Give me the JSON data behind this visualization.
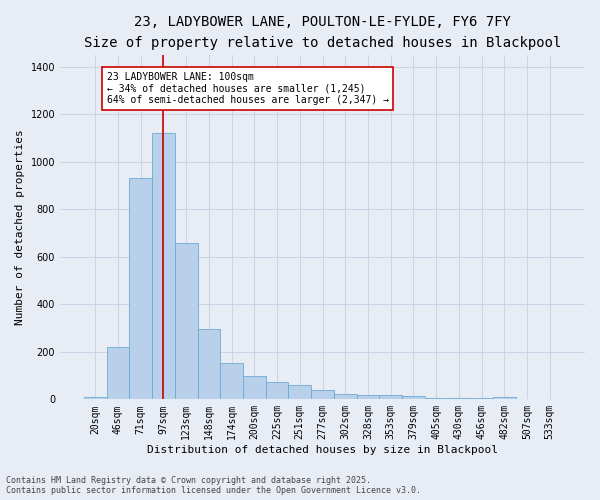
{
  "title_line1": "23, LADYBOWER LANE, POULTON-LE-FYLDE, FY6 7FY",
  "title_line2": "Size of property relative to detached houses in Blackpool",
  "xlabel": "Distribution of detached houses by size in Blackpool",
  "ylabel": "Number of detached properties",
  "categories": [
    "20sqm",
    "46sqm",
    "71sqm",
    "97sqm",
    "123sqm",
    "148sqm",
    "174sqm",
    "200sqm",
    "225sqm",
    "251sqm",
    "277sqm",
    "302sqm",
    "328sqm",
    "353sqm",
    "379sqm",
    "405sqm",
    "430sqm",
    "456sqm",
    "482sqm",
    "507sqm",
    "533sqm"
  ],
  "values": [
    8,
    220,
    930,
    1120,
    660,
    295,
    155,
    100,
    75,
    60,
    38,
    22,
    18,
    18,
    13,
    5,
    5,
    4,
    10,
    2,
    2
  ],
  "bar_color": "#b8d0ea",
  "bar_edge_color": "#6aaad4",
  "vline_x_index": 3.0,
  "vline_color": "#cc0000",
  "annotation_text": "23 LADYBOWER LANE: 100sqm\n← 34% of detached houses are smaller (1,245)\n64% of semi-detached houses are larger (2,347) →",
  "annotation_box_color": "#ffffff",
  "annotation_box_edge": "#cc0000",
  "ylim": [
    0,
    1450
  ],
  "yticks": [
    0,
    200,
    400,
    600,
    800,
    1000,
    1200,
    1400
  ],
  "grid_color": "#c8d4e8",
  "background_color": "#e8edf5",
  "footnote": "Contains HM Land Registry data © Crown copyright and database right 2025.\nContains public sector information licensed under the Open Government Licence v3.0.",
  "title_fontsize": 10,
  "subtitle_fontsize": 9,
  "xlabel_fontsize": 8,
  "ylabel_fontsize": 8,
  "tick_fontsize": 7,
  "annotation_fontsize": 7,
  "footnote_fontsize": 6
}
